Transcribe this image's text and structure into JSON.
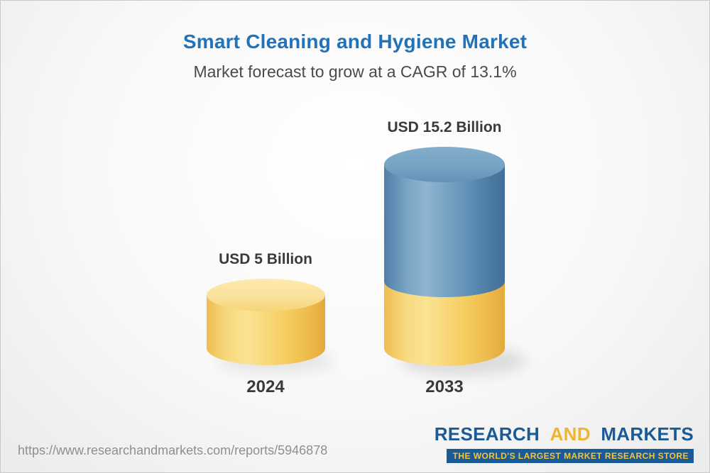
{
  "chart_data": {
    "type": "bar",
    "bar_style": "3d-cylinder",
    "title": "Smart Cleaning and Hygiene Market",
    "subtitle": "Market forecast to grow at a CAGR of 13.1%",
    "cagr_pct": 13.1,
    "unit": "USD Billion",
    "categories": [
      "2024",
      "2033"
    ],
    "values": [
      5,
      15.2
    ],
    "value_labels": [
      "USD 5 Billion",
      "USD 15.2 Billion"
    ],
    "xlabel": "",
    "ylabel": "",
    "ylim": [
      0,
      16
    ],
    "grid": false,
    "legend_position": "none",
    "colors": {
      "bar_2024": "#F6CE63",
      "bar_2033_growth": "#6696BB",
      "bar_2033_base": "#F6CE63",
      "title_blue": "#2173B9"
    }
  },
  "footer": {
    "url": "https://www.researchandmarkets.com/reports/5946878",
    "logo": {
      "research": "RESEARCH",
      "and": "AND",
      "markets": "MARKETS",
      "tagline": "THE WORLD'S LARGEST MARKET RESEARCH STORE",
      "colors": {
        "blue": "#1A5A96",
        "gold": "#F0B52F"
      }
    }
  }
}
